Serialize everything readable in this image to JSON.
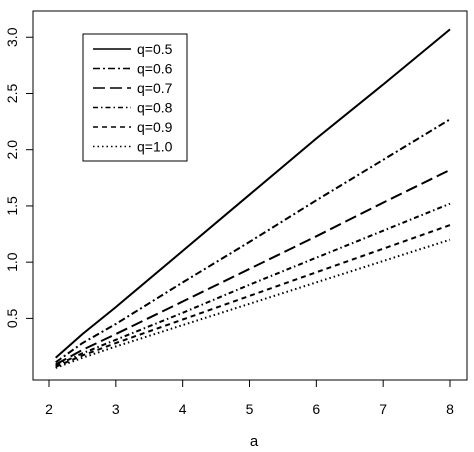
{
  "chart_data": {
    "type": "line",
    "title": "",
    "xlabel": "a",
    "ylabel": "",
    "xlim": [
      2,
      8
    ],
    "ylim": [
      0.05,
      3.1
    ],
    "xticks": [
      "2",
      "3",
      "4",
      "5",
      "6",
      "7",
      "8"
    ],
    "yticks": [
      "0.5",
      "1.0",
      "1.5",
      "2.0",
      "2.5",
      "3.0"
    ],
    "grid": false,
    "legend_position": "top-left",
    "line_color": "#000000",
    "series": [
      {
        "name": "q=0.5",
        "dash": "solid",
        "x": [
          2.1,
          2.5,
          3,
          4,
          5,
          6,
          7,
          8
        ],
        "y": [
          0.15,
          0.36,
          0.6,
          1.1,
          1.6,
          2.1,
          2.58,
          3.07
        ]
      },
      {
        "name": "q=0.6",
        "dash": "dashdot",
        "x": [
          2.1,
          2.5,
          3,
          4,
          5,
          6,
          7,
          8
        ],
        "y": [
          0.11,
          0.28,
          0.45,
          0.82,
          1.18,
          1.55,
          1.91,
          2.27
        ]
      },
      {
        "name": "q=0.7",
        "dash": "longdash",
        "x": [
          2.1,
          2.5,
          3,
          4,
          5,
          6,
          7,
          8
        ],
        "y": [
          0.09,
          0.22,
          0.36,
          0.65,
          0.94,
          1.23,
          1.53,
          1.82
        ]
      },
      {
        "name": "q=0.8",
        "dash": "twodash",
        "x": [
          2.1,
          2.5,
          3,
          4,
          5,
          6,
          7,
          8
        ],
        "y": [
          0.08,
          0.19,
          0.31,
          0.55,
          0.8,
          1.04,
          1.28,
          1.52
        ]
      },
      {
        "name": "q=0.9",
        "dash": "dashed",
        "x": [
          2.1,
          2.5,
          3,
          4,
          5,
          6,
          7,
          8
        ],
        "y": [
          0.07,
          0.17,
          0.28,
          0.49,
          0.7,
          0.91,
          1.12,
          1.33
        ]
      },
      {
        "name": "q=1.0",
        "dash": "dotted",
        "x": [
          2.1,
          2.5,
          3,
          4,
          5,
          6,
          7,
          8
        ],
        "y": [
          0.06,
          0.15,
          0.25,
          0.44,
          0.63,
          0.82,
          1.01,
          1.2
        ]
      }
    ]
  }
}
